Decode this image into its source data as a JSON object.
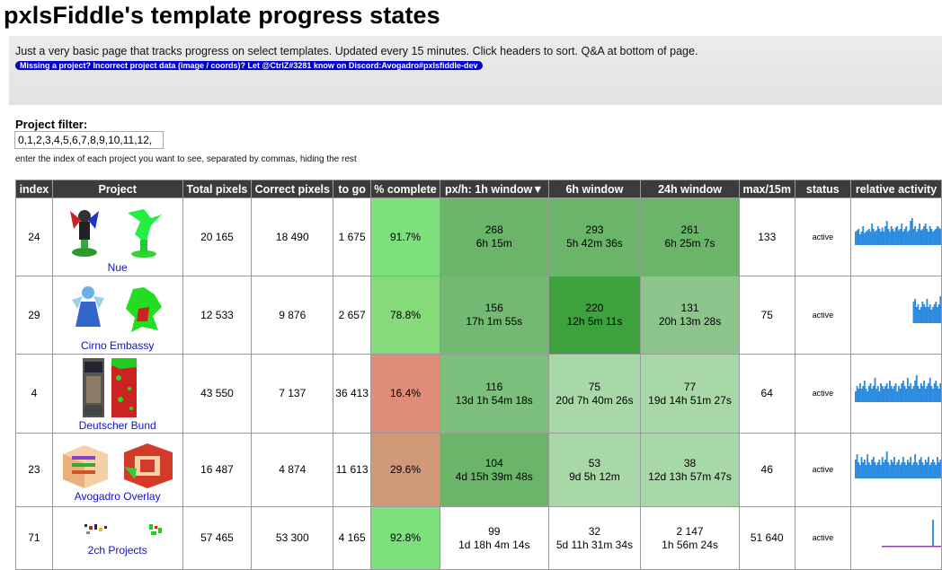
{
  "page": {
    "title": "pxlsFiddle's template progress states",
    "description": "Just a very basic page that tracks progress on select templates. Updated every 15 minutes. Click headers to sort. Q&A at bottom of page.",
    "discord_notice": "Missing a project? Incorrect project data (image / coords)? Let @CtrlZ#3281 know on Discord:Avogadro#pxlsfiddle-dev"
  },
  "filter": {
    "label": "Project filter:",
    "value": "0,1,2,3,4,5,6,7,8,9,10,11,12,",
    "hint": "enter the index of each project you want to see, separated by commas, hiding the rest"
  },
  "table": {
    "headers": {
      "index": "index",
      "project": "Project",
      "total": "Total pixels",
      "correct": "Correct pixels",
      "togo": "to go",
      "complete": "% complete",
      "h1": "px/h: 1h window▼",
      "h6": "6h window",
      "h24": "24h window",
      "max15": "max/15m",
      "status": "status",
      "activity": "relative activity"
    },
    "colors": {
      "header_bg": "#3c3c3c",
      "status_green_dark": "#3da23d",
      "status_green_mid": "#6bb56b",
      "status_green_light": "#a8d8a8",
      "complete_high": "#7de07d",
      "complete_low": "#e08c7a",
      "complete_mid": "#d09a78",
      "activity_blue": "#2d8ce0"
    },
    "rows": [
      {
        "index": "24",
        "name": "Nue",
        "total": "20 165",
        "correct": "18 490",
        "togo": "1 675",
        "complete": "91.7%",
        "h1_rate": "268",
        "h1_eta": "6h 15m",
        "h6_rate": "293",
        "h6_eta": "5h 42m 36s",
        "h24_rate": "261",
        "h24_eta": "6h 25m 7s",
        "max15": "133",
        "status": "active",
        "activity": [
          0.5,
          0.55,
          0.6,
          0.4,
          0.5,
          0.7,
          0.45,
          0.5,
          0.55,
          0.6,
          0.5,
          0.8,
          0.6,
          0.5,
          0.55,
          0.7,
          0.6,
          0.5,
          0.65,
          0.5,
          0.7,
          0.9,
          0.6,
          0.5,
          0.7,
          0.6,
          0.5,
          0.65,
          0.7,
          0.55,
          0.6,
          0.8,
          0.5,
          0.6,
          0.7,
          0.5,
          0.55,
          0.9,
          1.0,
          0.6,
          0.7,
          0.5,
          0.6,
          0.8,
          0.55,
          0.6,
          0.7,
          0.8,
          0.6,
          0.5,
          0.7,
          0.6,
          0.5,
          0.55,
          0.6,
          0.7,
          0.65,
          0.6
        ]
      },
      {
        "index": "29",
        "name": "Cirno Embassy",
        "total": "12 533",
        "correct": "9 876",
        "togo": "2 657",
        "complete": "78.8%",
        "h1_rate": "156",
        "h1_eta": "17h 1m 55s",
        "h6_rate": "220",
        "h6_eta": "12h 5m 11s",
        "h24_rate": "131",
        "h24_eta": "20h 13m 28s",
        "max15": "75",
        "status": "active",
        "activity": [
          0,
          0,
          0,
          0,
          0,
          0,
          0,
          0,
          0,
          0,
          0,
          0,
          0,
          0,
          0,
          0,
          0,
          0,
          0,
          0,
          0,
          0,
          0,
          0,
          0,
          0,
          0,
          0,
          0,
          0,
          0,
          0,
          0,
          0,
          0,
          0,
          0,
          0,
          0,
          0.8,
          0.9,
          0.6,
          0.7,
          0.5,
          0.6,
          0.8,
          0.7,
          0.6,
          0.9,
          0.6,
          0.7,
          0.5,
          0.6,
          0.7,
          0.8,
          0.6,
          0.7,
          1.0
        ]
      },
      {
        "index": "4",
        "name": "Deutscher Bund",
        "total": "43 550",
        "correct": "7 137",
        "togo": "36 413",
        "complete": "16.4%",
        "h1_rate": "116",
        "h1_eta": "13d 1h 54m 18s",
        "h6_rate": "75",
        "h6_eta": "20d 7h 40m 26s",
        "h24_rate": "77",
        "h24_eta": "19d 14h 51m 27s",
        "max15": "64",
        "status": "active",
        "activity": [
          0.4,
          0.6,
          0.5,
          0.7,
          0.5,
          0.6,
          0.8,
          0.5,
          0.4,
          0.6,
          0.7,
          0.5,
          0.6,
          0.9,
          0.5,
          0.6,
          0.4,
          0.7,
          0.6,
          0.5,
          0.6,
          0.7,
          0.5,
          0.8,
          0.6,
          0.5,
          0.6,
          0.7,
          0.4,
          0.6,
          0.5,
          0.7,
          0.8,
          0.6,
          0.5,
          0.9,
          0.6,
          0.7,
          0.5,
          0.6,
          0.8,
          1.0,
          0.6,
          0.5,
          0.7,
          0.6,
          0.8,
          0.5,
          0.6,
          0.7,
          0.9,
          0.6,
          0.5,
          0.7,
          0.8,
          0.6,
          0.5,
          0.7
        ]
      },
      {
        "index": "23",
        "name": "Avogadro Overlay",
        "total": "16 487",
        "correct": "4 874",
        "togo": "11 613",
        "complete": "29.6%",
        "h1_rate": "104",
        "h1_eta": "4d 15h 39m 48s",
        "h6_rate": "53",
        "h6_eta": "9d 5h 12m",
        "h24_rate": "38",
        "h24_eta": "12d 13h 57m 47s",
        "max15": "46",
        "status": "active",
        "activity": [
          0.7,
          0.9,
          0.6,
          0.5,
          0.8,
          0.6,
          0.7,
          0.5,
          0.9,
          0.6,
          0.5,
          0.7,
          0.8,
          0.6,
          0.5,
          0.6,
          0.7,
          0.5,
          0.8,
          0.6,
          0.7,
          1.0,
          0.6,
          0.5,
          0.7,
          0.6,
          0.8,
          0.5,
          0.6,
          0.7,
          0.5,
          0.6,
          0.8,
          0.6,
          0.5,
          0.7,
          0.6,
          0.8,
          0.5,
          0.6,
          0.9,
          0.6,
          0.5,
          0.7,
          0.8,
          0.6,
          0.5,
          0.7,
          0.6,
          0.8,
          0.5,
          0.6,
          0.7,
          0.6,
          0.5,
          0.8,
          0.6,
          0.7
        ]
      },
      {
        "index": "71",
        "name": "2ch Projects",
        "total": "57 465",
        "correct": "53 300",
        "togo": "4 165",
        "complete": "92.8%",
        "h1_rate": "99",
        "h1_eta": "1d 18h 4m 14s",
        "h6_rate": "32",
        "h6_eta": "5d 11h 31m 34s",
        "h24_rate": "2 147",
        "h24_eta": "1h 56m 24s",
        "max15": "51 640",
        "status": "active",
        "activity": [
          0,
          0,
          0,
          0,
          0,
          0,
          0,
          0,
          0,
          0,
          0,
          0,
          0,
          0,
          0,
          0,
          0,
          0,
          0,
          0,
          0,
          0,
          0,
          0,
          0,
          0,
          0,
          0,
          0,
          0,
          0,
          0,
          0,
          0,
          0,
          0,
          0,
          0,
          0,
          0,
          0,
          0,
          0,
          0,
          0,
          0,
          0,
          0,
          0,
          0,
          0,
          0,
          1.0,
          0,
          0,
          0,
          0,
          0
        ]
      }
    ]
  }
}
